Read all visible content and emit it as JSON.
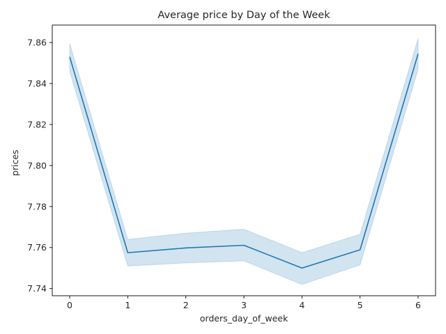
{
  "chart_data": {
    "type": "line",
    "title": "Average price by Day of the Week",
    "xlabel": "orders_day_of_week",
    "ylabel": "prices",
    "x": [
      0,
      1,
      2,
      3,
      4,
      5,
      6
    ],
    "series": [
      {
        "name": "prices",
        "values": [
          7.853,
          7.7575,
          7.7598,
          7.7611,
          7.75,
          7.7589,
          7.8545
        ],
        "ci_lower": [
          7.846,
          7.751,
          7.7525,
          7.7535,
          7.742,
          7.7515,
          7.847
        ],
        "ci_upper": [
          7.8595,
          7.764,
          7.767,
          7.769,
          7.7575,
          7.7665,
          7.862
        ],
        "color": "#1f77b4",
        "band_color": "#1f77b4"
      }
    ],
    "xlim": [
      -0.3,
      6.3
    ],
    "ylim": [
      7.7365,
      7.8685
    ],
    "xticks": [
      "0",
      "1",
      "2",
      "3",
      "4",
      "5",
      "6"
    ],
    "yticks": [
      "7.74",
      "7.76",
      "7.78",
      "7.80",
      "7.82",
      "7.84",
      "7.86"
    ],
    "grid": false,
    "legend": "none"
  }
}
